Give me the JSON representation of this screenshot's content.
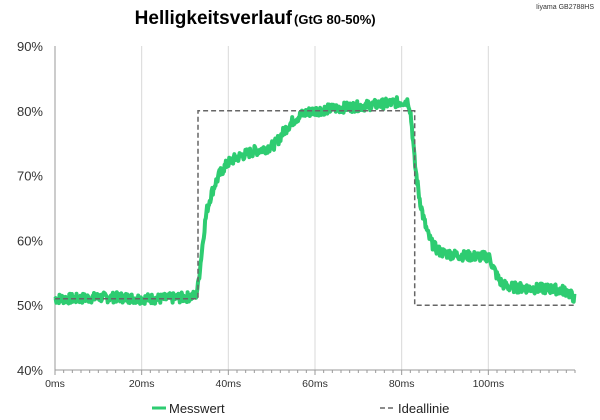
{
  "chart_data": {
    "type": "line",
    "title": "Helligkeitsverlauf",
    "subtitle": "(GtG 80-50%)",
    "device": "Iiyama GB2788HS",
    "xlabel": "",
    "ylabel": "",
    "xlim": [
      0,
      120
    ],
    "ylim": [
      40,
      90
    ],
    "x_ticks": [
      0,
      20,
      40,
      60,
      80,
      100
    ],
    "x_tick_labels": [
      "0ms",
      "20ms",
      "40ms",
      "60ms",
      "80ms",
      "100ms"
    ],
    "y_ticks": [
      40,
      50,
      60,
      70,
      80,
      90
    ],
    "y_tick_labels": [
      "40%",
      "50%",
      "60%",
      "70%",
      "80%",
      "90%"
    ],
    "grid": "vertical",
    "legend_position": "bottom",
    "series": [
      {
        "name": "Messwert",
        "color": "#2ecc71",
        "style": "solid",
        "x": [
          0,
          5,
          10,
          15,
          20,
          25,
          30,
          32.5,
          33,
          33.5,
          34,
          34.5,
          35,
          36,
          37,
          38,
          39,
          40,
          42,
          44,
          46,
          48,
          50,
          51,
          52,
          53,
          54,
          55,
          56,
          57,
          58,
          60,
          65,
          70,
          75,
          80,
          81.5,
          82,
          82.5,
          83,
          84,
          85,
          86,
          87,
          88,
          89,
          90,
          92,
          95,
          98,
          100,
          100.5,
          101,
          102,
          103,
          104,
          105,
          110,
          115,
          118,
          120
        ],
        "y": [
          51,
          51,
          51.2,
          51.2,
          51,
          51,
          51.2,
          51.5,
          53,
          56,
          59,
          62,
          64.5,
          67,
          68.8,
          70.2,
          71.2,
          72,
          72.8,
          73.3,
          73.8,
          74.1,
          74.5,
          75,
          76,
          77,
          77.8,
          78.5,
          79,
          79.4,
          79.7,
          80,
          80.4,
          80.7,
          81,
          81.4,
          81.5,
          80,
          76.5,
          72,
          67,
          63.5,
          61,
          59.5,
          58.7,
          58.2,
          58,
          57.8,
          57.6,
          57.5,
          57.5,
          57,
          56,
          54.5,
          53.4,
          53,
          52.8,
          52.6,
          52.5,
          52.2,
          51
        ]
      },
      {
        "name": "Ideallinie",
        "color": "#666666",
        "style": "dashed",
        "x": [
          0,
          33,
          33,
          83,
          83,
          120
        ],
        "y": [
          51,
          51,
          80,
          80,
          50,
          50
        ]
      }
    ]
  }
}
